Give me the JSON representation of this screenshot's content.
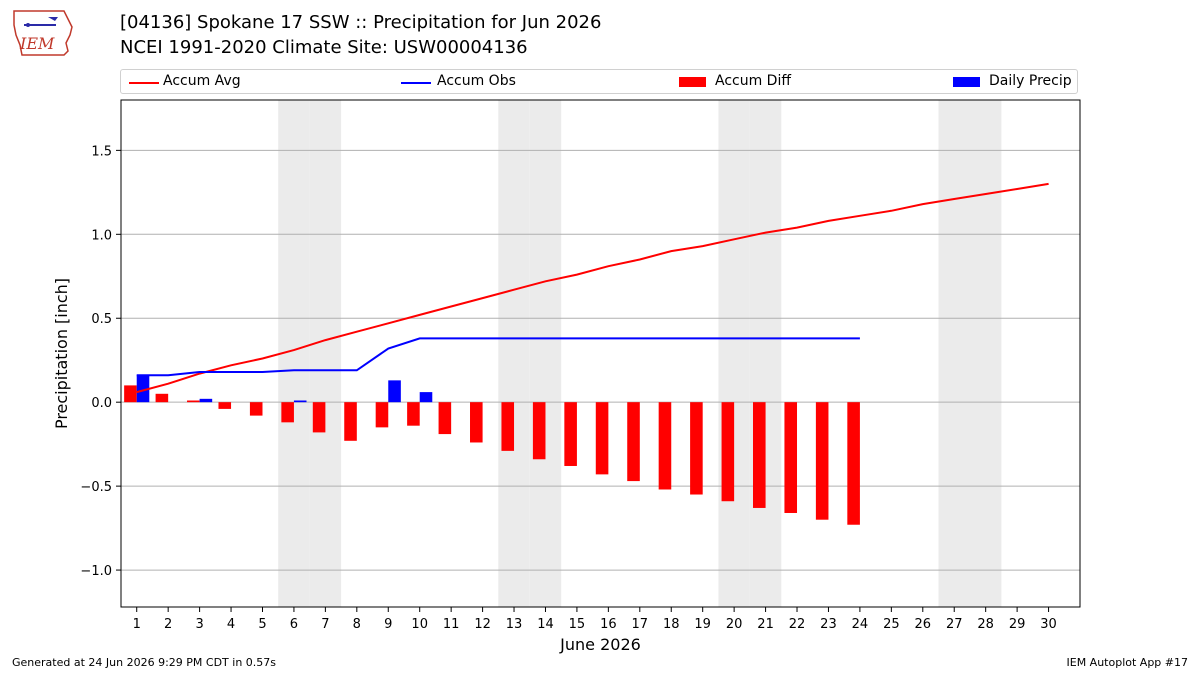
{
  "header": {
    "title_line1": "[04136] Spokane 17 SSW :: Precipitation for Jun 2026",
    "title_line2": "NCEI 1991-2020 Climate Site: USW00004136",
    "logo_text": "IEM"
  },
  "legend": {
    "items": [
      {
        "label": "Accum Avg",
        "kind": "line",
        "color": "#ff0000"
      },
      {
        "label": "Accum Obs",
        "kind": "line",
        "color": "#0000ff"
      },
      {
        "label": "Accum Diff",
        "kind": "patch",
        "color": "#ff0000"
      },
      {
        "label": "Daily Precip",
        "kind": "patch",
        "color": "#0000ff"
      }
    ]
  },
  "footer": {
    "left": "Generated at 24 Jun 2026 9:29 PM CDT in 0.57s",
    "right": "IEM Autoplot App #17"
  },
  "chart_data": {
    "type": "bar",
    "xlabel": "June 2026",
    "ylabel": "Precipitation [inch]",
    "ylim": [
      -1.22,
      1.8
    ],
    "xlim": [
      0.5,
      31.0
    ],
    "yticks": [
      -1.0,
      -0.5,
      0.0,
      0.5,
      1.0,
      1.5
    ],
    "ytick_labels": [
      "−1.0",
      "−0.5",
      "0.0",
      "0.5",
      "1.0",
      "1.5"
    ],
    "categories": [
      "1",
      "2",
      "3",
      "4",
      "5",
      "6",
      "7",
      "8",
      "9",
      "10",
      "11",
      "12",
      "13",
      "14",
      "15",
      "16",
      "17",
      "18",
      "19",
      "20",
      "21",
      "22",
      "23",
      "24",
      "25",
      "26",
      "27",
      "28",
      "29",
      "30"
    ],
    "weekend_days": [
      6,
      7,
      13,
      14,
      20,
      21,
      27,
      28
    ],
    "grid": "horizontal",
    "series": [
      {
        "name": "Accum Avg",
        "kind": "line",
        "color": "#ff0000",
        "x": [
          1,
          2,
          3,
          4,
          5,
          6,
          7,
          8,
          9,
          10,
          11,
          12,
          13,
          14,
          15,
          16,
          17,
          18,
          19,
          20,
          21,
          22,
          23,
          24,
          25,
          26,
          27,
          28,
          29,
          30
        ],
        "values": [
          0.06,
          0.11,
          0.17,
          0.22,
          0.26,
          0.31,
          0.37,
          0.42,
          0.47,
          0.52,
          0.57,
          0.62,
          0.67,
          0.72,
          0.76,
          0.81,
          0.85,
          0.9,
          0.93,
          0.97,
          1.01,
          1.04,
          1.08,
          1.11,
          1.14,
          1.18,
          1.21,
          1.24,
          1.27,
          1.3
        ]
      },
      {
        "name": "Accum Obs",
        "kind": "line",
        "color": "#0000ff",
        "x": [
          1,
          2,
          3,
          4,
          5,
          6,
          7,
          8,
          9,
          10,
          11,
          12,
          13,
          14,
          15,
          16,
          17,
          18,
          19,
          20,
          21,
          22,
          23,
          24
        ],
        "values": [
          0.16,
          0.16,
          0.18,
          0.18,
          0.18,
          0.19,
          0.19,
          0.19,
          0.32,
          0.38,
          0.38,
          0.38,
          0.38,
          0.38,
          0.38,
          0.38,
          0.38,
          0.38,
          0.38,
          0.38,
          0.38,
          0.38,
          0.38,
          0.38
        ]
      },
      {
        "name": "Accum Diff",
        "kind": "bar",
        "color": "#ff0000",
        "x": [
          1,
          2,
          3,
          4,
          5,
          6,
          7,
          8,
          9,
          10,
          11,
          12,
          13,
          14,
          15,
          16,
          17,
          18,
          19,
          20,
          21,
          22,
          23,
          24
        ],
        "values": [
          0.1,
          0.05,
          0.01,
          -0.04,
          -0.08,
          -0.12,
          -0.18,
          -0.23,
          -0.15,
          -0.14,
          -0.19,
          -0.24,
          -0.29,
          -0.34,
          -0.38,
          -0.43,
          -0.47,
          -0.52,
          -0.55,
          -0.59,
          -0.63,
          -0.66,
          -0.7,
          -0.73
        ]
      },
      {
        "name": "Daily Precip",
        "kind": "bar",
        "color": "#0000ff",
        "x": [
          1,
          2,
          3,
          4,
          5,
          6,
          7,
          8,
          9,
          10,
          11,
          12,
          13,
          14,
          15,
          16,
          17,
          18,
          19,
          20,
          21,
          22,
          23,
          24
        ],
        "values": [
          0.16,
          0,
          0.02,
          0,
          0,
          0.01,
          0,
          0,
          0.13,
          0.06,
          0,
          0,
          0,
          0,
          0,
          0,
          0,
          0,
          0,
          0,
          0,
          0,
          0,
          0
        ]
      }
    ]
  }
}
